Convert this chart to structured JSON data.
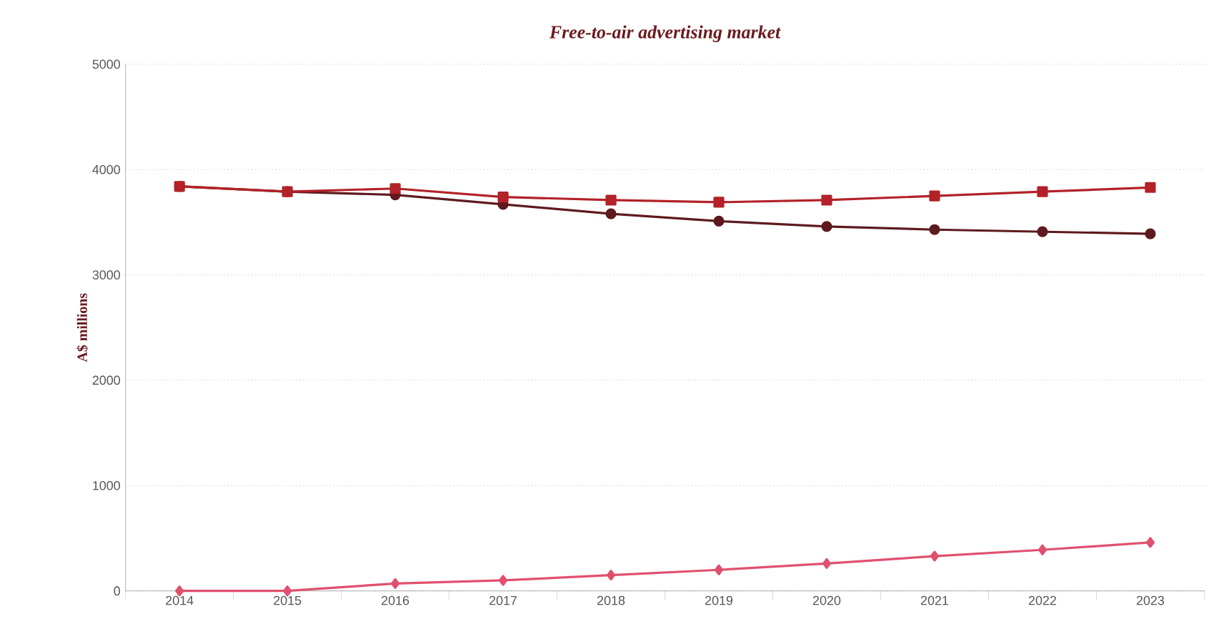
{
  "chart_data": {
    "type": "line",
    "title": "Free-to-air advertising market",
    "ylabel": "A$ millions",
    "categories": [
      "2014",
      "2015",
      "2016",
      "2017",
      "2018",
      "2019",
      "2020",
      "2021",
      "2022",
      "2023"
    ],
    "series": [
      {
        "color": "#b22228",
        "marker": "square",
        "values": [
          3840,
          3790,
          3820,
          3740,
          3710,
          3690,
          3710,
          3750,
          3790,
          3830
        ]
      },
      {
        "color": "#5e1a1e",
        "marker": "circle",
        "values": [
          3840,
          3790,
          3760,
          3670,
          3580,
          3510,
          3460,
          3430,
          3410,
          3390
        ]
      },
      {
        "color": "#e0506e",
        "marker": "diamond",
        "values": [
          0,
          0,
          70,
          100,
          150,
          200,
          260,
          330,
          390,
          460
        ]
      }
    ],
    "ylim": [
      0,
      5000
    ],
    "yticks": [
      0,
      1000,
      2000,
      3000,
      4000,
      5000
    ],
    "grid": "y",
    "line_style": "solid"
  }
}
